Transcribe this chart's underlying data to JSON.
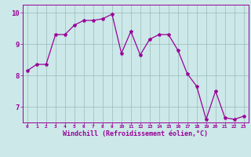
{
  "x": [
    0,
    1,
    2,
    3,
    4,
    5,
    6,
    7,
    8,
    9,
    10,
    11,
    12,
    13,
    14,
    15,
    16,
    17,
    18,
    19,
    20,
    21,
    22,
    23
  ],
  "y": [
    8.15,
    8.35,
    8.35,
    9.3,
    9.3,
    9.6,
    9.75,
    9.75,
    9.8,
    9.95,
    8.7,
    9.4,
    8.65,
    9.15,
    9.3,
    9.3,
    8.8,
    8.05,
    7.65,
    6.6,
    7.5,
    6.65,
    6.6,
    6.7
  ],
  "line_color": "#990099",
  "marker": "*",
  "marker_size": 3,
  "bg_color": "#cce8e8",
  "grid_color": "#99bbbb",
  "xlabel": "Windchill (Refroidissement éolien,°C)",
  "xlabel_color": "#990099",
  "tick_color": "#990099",
  "ylim": [
    6.5,
    10.25
  ],
  "yticks": [
    7,
    8,
    9,
    10
  ],
  "xticks": [
    0,
    1,
    2,
    3,
    4,
    5,
    6,
    7,
    8,
    9,
    10,
    11,
    12,
    13,
    14,
    15,
    16,
    17,
    18,
    19,
    20,
    21,
    22,
    23
  ],
  "spine_color": "#990099",
  "xlim": [
    -0.5,
    23.5
  ]
}
